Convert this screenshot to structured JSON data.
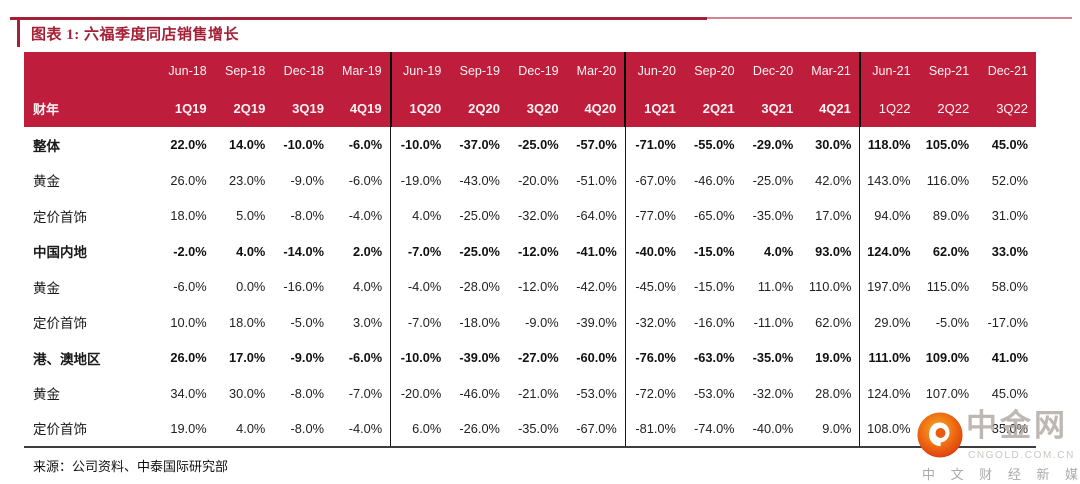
{
  "title": {
    "text": "图表 1: 六福季度同店销售增长"
  },
  "footer": {
    "source": "来源：公司资料、中泰国际研究部"
  },
  "watermark": {
    "name": "中金网",
    "domain": "CNGOLD.COM.CN",
    "tagline": "中 文 财 经 新 媒 体",
    "logo_icon": "cngold-swirl-icon"
  },
  "colors": {
    "header_red": "#BE1E3C",
    "title_red": "#A32036",
    "divider_black": "#151515",
    "logo_orange_outer": "#D8330E",
    "logo_orange_inner": "#F7AE23",
    "watermark_gray": "#a69e98"
  },
  "chart_data": {
    "type": "table",
    "title": "六福季度同店销售增长",
    "corner_label": "财年",
    "column_months": [
      "Jun-18",
      "Sep-18",
      "Dec-18",
      "Mar-19",
      "Jun-19",
      "Sep-19",
      "Dec-19",
      "Mar-20",
      "Jun-20",
      "Sep-20",
      "Dec-20",
      "Mar-21",
      "Jun-21",
      "Sep-21",
      "Dec-21"
    ],
    "column_quarters": [
      "1Q19",
      "2Q19",
      "3Q19",
      "4Q19",
      "1Q20",
      "2Q20",
      "3Q20",
      "4Q20",
      "1Q21",
      "2Q21",
      "3Q21",
      "4Q21",
      "1Q22",
      "2Q22",
      "3Q22"
    ],
    "fiscal_year_group_starts": [
      4,
      8,
      12
    ],
    "regular_weight_quarter_cols_from": 12,
    "rows": [
      {
        "label": "整体",
        "bold": true,
        "values": [
          "22.0%",
          "14.0%",
          "-10.0%",
          "-6.0%",
          "-10.0%",
          "-37.0%",
          "-25.0%",
          "-57.0%",
          "-71.0%",
          "-55.0%",
          "-29.0%",
          "30.0%",
          "118.0%",
          "105.0%",
          "45.0%"
        ]
      },
      {
        "label": "黄金",
        "bold": false,
        "values": [
          "26.0%",
          "23.0%",
          "-9.0%",
          "-6.0%",
          "-19.0%",
          "-43.0%",
          "-20.0%",
          "-51.0%",
          "-67.0%",
          "-46.0%",
          "-25.0%",
          "42.0%",
          "143.0%",
          "116.0%",
          "52.0%"
        ]
      },
      {
        "label": "定价首饰",
        "bold": false,
        "values": [
          "18.0%",
          "5.0%",
          "-8.0%",
          "-4.0%",
          "4.0%",
          "-25.0%",
          "-32.0%",
          "-64.0%",
          "-77.0%",
          "-65.0%",
          "-35.0%",
          "17.0%",
          "94.0%",
          "89.0%",
          "31.0%"
        ]
      },
      {
        "label": "中国内地",
        "bold": true,
        "values": [
          "-2.0%",
          "4.0%",
          "-14.0%",
          "2.0%",
          "-7.0%",
          "-25.0%",
          "-12.0%",
          "-41.0%",
          "-40.0%",
          "-15.0%",
          "4.0%",
          "93.0%",
          "124.0%",
          "62.0%",
          "33.0%"
        ]
      },
      {
        "label": "黄金",
        "bold": false,
        "values": [
          "-6.0%",
          "0.0%",
          "-16.0%",
          "4.0%",
          "-4.0%",
          "-28.0%",
          "-12.0%",
          "-42.0%",
          "-45.0%",
          "-15.0%",
          "11.0%",
          "110.0%",
          "197.0%",
          "115.0%",
          "58.0%"
        ]
      },
      {
        "label": "定价首饰",
        "bold": false,
        "values": [
          "10.0%",
          "18.0%",
          "-5.0%",
          "3.0%",
          "-7.0%",
          "-18.0%",
          "-9.0%",
          "-39.0%",
          "-32.0%",
          "-16.0%",
          "-11.0%",
          "62.0%",
          "29.0%",
          "-5.0%",
          "-17.0%"
        ]
      },
      {
        "label": "港、澳地区",
        "bold": true,
        "values": [
          "26.0%",
          "17.0%",
          "-9.0%",
          "-6.0%",
          "-10.0%",
          "-39.0%",
          "-27.0%",
          "-60.0%",
          "-76.0%",
          "-63.0%",
          "-35.0%",
          "19.0%",
          "111.0%",
          "109.0%",
          "41.0%"
        ]
      },
      {
        "label": "黄金",
        "bold": false,
        "values": [
          "34.0%",
          "30.0%",
          "-8.0%",
          "-7.0%",
          "-20.0%",
          "-46.0%",
          "-21.0%",
          "-53.0%",
          "-72.0%",
          "-53.0%",
          "-32.0%",
          "28.0%",
          "124.0%",
          "107.0%",
          "45.0%"
        ]
      },
      {
        "label": "定价首饰",
        "bold": false,
        "values": [
          "19.0%",
          "4.0%",
          "-8.0%",
          "-4.0%",
          "6.0%",
          "-26.0%",
          "-35.0%",
          "-67.0%",
          "-81.0%",
          "-74.0%",
          "-40.0%",
          "9.0%",
          "108.0%",
          "",
          "35.0%"
        ]
      }
    ]
  }
}
